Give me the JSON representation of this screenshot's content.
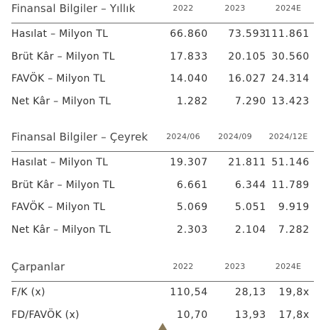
{
  "sections": [
    {
      "title": "Finansal Bilgiler – Yıllık",
      "columns": [
        "2022",
        "2023",
        "2024E"
      ],
      "rows": [
        {
          "label": "Hasılat – Milyon TL",
          "values": [
            "66.860",
            "73.593",
            "111.861"
          ]
        },
        {
          "label": "Brüt Kâr – Milyon TL",
          "values": [
            "17.833",
            "20.105",
            "30.560"
          ]
        },
        {
          "label": "FAVÖK – Milyon TL",
          "values": [
            "14.040",
            "16.027",
            "24.314"
          ]
        },
        {
          "label": "Net Kâr – Milyon TL",
          "values": [
            "1.282",
            "7.290",
            "13.423"
          ]
        }
      ]
    },
    {
      "title": "Finansal Bilgiler – Çeyrek",
      "columns": [
        "2024/06",
        "2024/09",
        "2024/12E"
      ],
      "rows": [
        {
          "label": "Hasılat – Milyon TL",
          "values": [
            "19.307",
            "21.811",
            "51.146"
          ]
        },
        {
          "label": "Brüt Kâr – Milyon TL",
          "values": [
            "6.661",
            "6.344",
            "11.789"
          ]
        },
        {
          "label": "FAVÖK – Milyon TL",
          "values": [
            "5.069",
            "5.051",
            "9.919"
          ]
        },
        {
          "label": "Net Kâr – Milyon TL",
          "values": [
            "2.303",
            "2.104",
            "7.282"
          ]
        }
      ]
    },
    {
      "title": "Çarpanlar",
      "columns": [
        "2022",
        "2023",
        "2024E"
      ],
      "rows": [
        {
          "label": "F/K (x)",
          "values": [
            "110,54",
            "28,13",
            "19,8x"
          ]
        },
        {
          "label": "FD/FAVÖK (x)",
          "values": [
            "10,70",
            "13,93",
            "17,8x"
          ]
        }
      ]
    }
  ],
  "colors": {
    "text": "#333333",
    "rule": "#6b6b6b",
    "marker": "#8a7a5a"
  },
  "icons": {
    "marker": "up-triangle-icon"
  }
}
